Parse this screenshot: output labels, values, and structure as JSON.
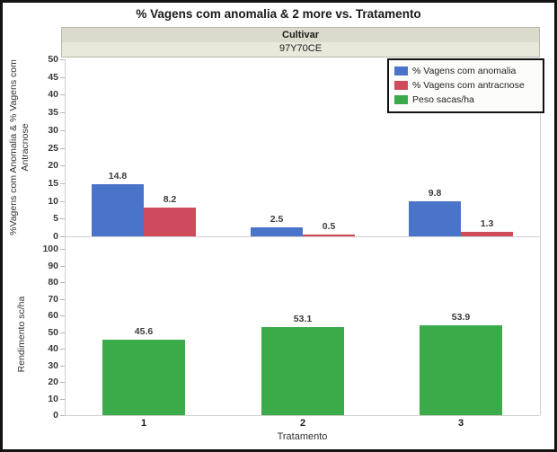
{
  "title": "% Vagens com anomalia & 2 more vs. Tratamento",
  "header": {
    "group_label": "Cultivar",
    "group_value": "97Y70CE"
  },
  "legend": [
    {
      "label": "% Vagens com anomalia",
      "color": "#4a74c9"
    },
    {
      "label": "% Vagens com antracnose",
      "color": "#cf4b5c"
    },
    {
      "label": "Peso sacas/ha",
      "color": "#3bab49"
    }
  ],
  "chart_data": {
    "type": "bar",
    "categories": [
      "1",
      "2",
      "3"
    ],
    "xlabel": "Tratamento",
    "legend_position": "top-right",
    "grid": false,
    "panels": [
      {
        "ylabel": "%Vagens com Anomalia & % Vagens com Antracnose",
        "ylim": [
          0,
          50
        ],
        "ytick_step": 5,
        "series": [
          {
            "name": "% Vagens com anomalia",
            "color": "#4a74c9",
            "values": [
              14.8,
              2.5,
              9.8
            ]
          },
          {
            "name": "% Vagens com antracnose",
            "color": "#cf4b5c",
            "values": [
              8.2,
              0.5,
              1.3
            ]
          }
        ]
      },
      {
        "ylabel": "Rendimento sc/ha",
        "ylim": [
          0,
          100
        ],
        "ytick_step": 10,
        "series": [
          {
            "name": "Peso sacas/ha",
            "color": "#3bab49",
            "values": [
              45.6,
              53.1,
              53.9
            ]
          }
        ]
      }
    ]
  }
}
